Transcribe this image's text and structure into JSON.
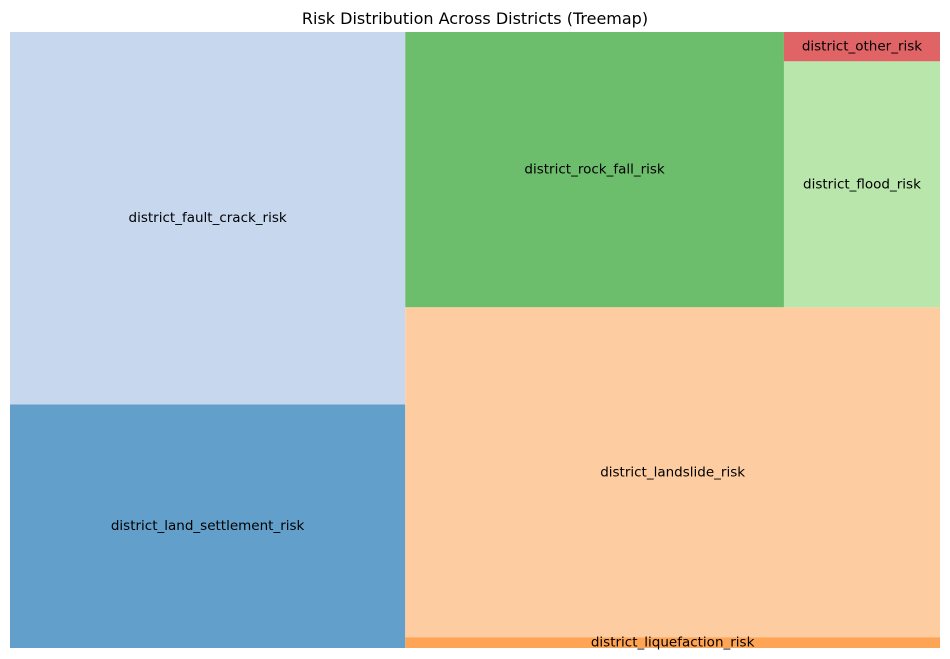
{
  "chart_data": {
    "type": "treemap",
    "title": "Risk Distribution Across Districts (Treemap)",
    "unit": "relative share (%) of total area, estimated",
    "items": [
      {
        "label": "district_fault_crack_risk",
        "value": 25.7,
        "color": "#c6d7ee"
      },
      {
        "label": "district_land_settlement_risk",
        "value": 16.8,
        "color": "#629fca"
      },
      {
        "label": "district_rock_fall_risk",
        "value": 18.2,
        "color": "#6cbd6c"
      },
      {
        "label": "district_flood_risk",
        "value": 6.7,
        "color": "#b8e6ab"
      },
      {
        "label": "district_other_risk",
        "value": 0.8,
        "color": "#e06466"
      },
      {
        "label": "district_landslide_risk",
        "value": 30.8,
        "color": "#fdcda1"
      },
      {
        "label": "district_liquefaction_risk",
        "value": 1.0,
        "color": "#fea455"
      }
    ]
  }
}
